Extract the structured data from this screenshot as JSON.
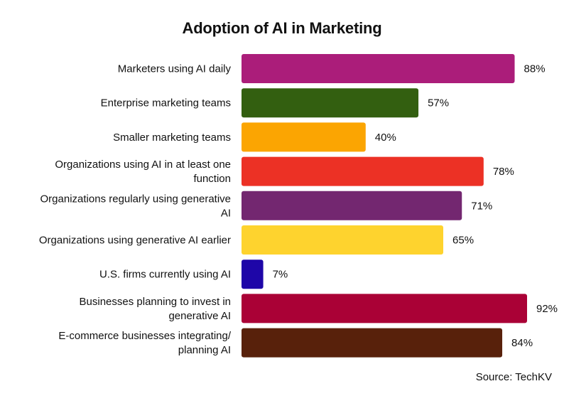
{
  "chart_data": {
    "type": "bar",
    "orientation": "horizontal",
    "title": "Adoption of AI in Marketing",
    "xlabel": "",
    "ylabel": "",
    "value_suffix": "%",
    "xlim": [
      0,
      92
    ],
    "categories": [
      [
        "Marketers using AI daily"
      ],
      [
        "Enterprise marketing teams"
      ],
      [
        "Smaller marketing teams"
      ],
      [
        "Organizations using AI in at least one",
        "function"
      ],
      [
        "Organizations regularly using generative",
        "AI"
      ],
      [
        "Organizations using generative AI earlier"
      ],
      [
        "U.S. firms currently using AI"
      ],
      [
        "Businesses planning to invest in",
        "generative AI"
      ],
      [
        "E-commerce businesses integrating/",
        "planning AI"
      ]
    ],
    "values": [
      88,
      57,
      40,
      78,
      71,
      65,
      7,
      92,
      84
    ],
    "value_labels": [
      "88%",
      "57%",
      "40%",
      "78%",
      "71%",
      "65%",
      "7%",
      "92%",
      "84%"
    ],
    "colors": [
      "#ab1d7a",
      "#335f10",
      "#fba502",
      "#ec3125",
      "#732770",
      "#fed32e",
      "#1e06a8",
      "#aa0136",
      "#58210b"
    ],
    "source": "Source: TechKV"
  }
}
